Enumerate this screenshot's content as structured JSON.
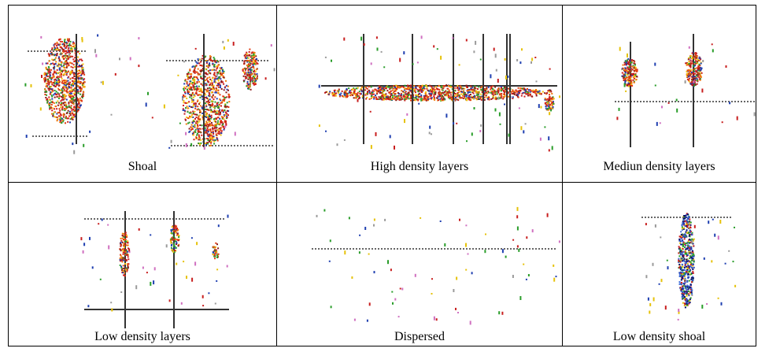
{
  "panels": [
    {
      "id": "shoal",
      "caption": "Shoal"
    },
    {
      "id": "high-density-layers",
      "caption": "High density layers"
    },
    {
      "id": "medium-density-layers",
      "caption": "Mediun density layers"
    },
    {
      "id": "low-density-layers",
      "caption": "Low density layers"
    },
    {
      "id": "dispersed",
      "caption": "Dispersed"
    },
    {
      "id": "low-density-shoal",
      "caption": "Low density shoal"
    }
  ]
}
